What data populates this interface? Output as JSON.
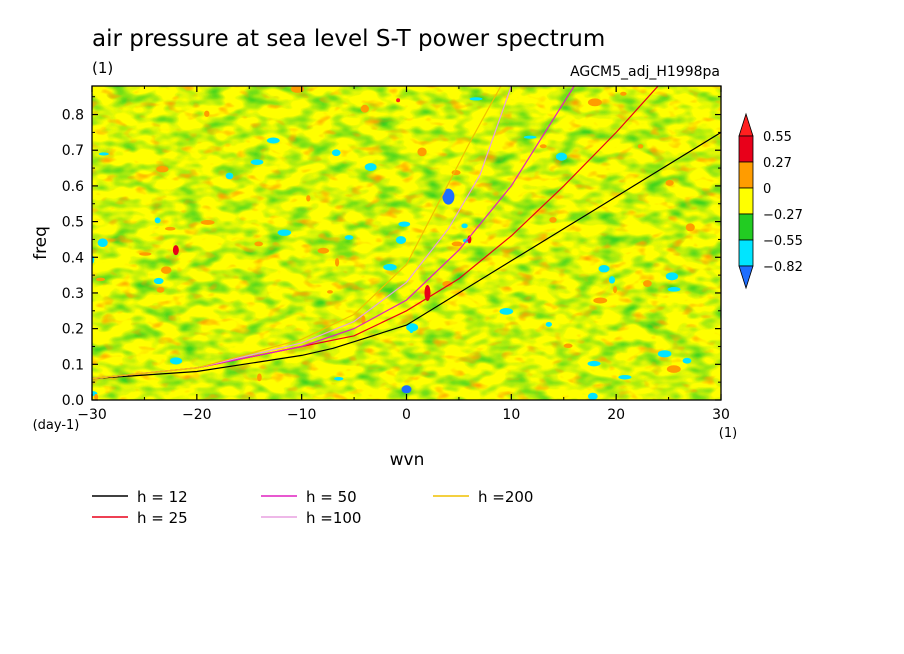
{
  "chart_data": {
    "type": "heatmap",
    "title": "air pressure at sea level S-T power spectrum",
    "units_label": "(1)",
    "dataset_label": "AGCM5_adj_H1998pa",
    "xlabel": "wvn",
    "ylabel": "freq",
    "x_unit_label": "(1)",
    "y_unit_label": "(day-1)",
    "xlim": [
      -30,
      30
    ],
    "ylim": [
      0,
      0.88
    ],
    "x_ticks": [
      -30,
      -20,
      -10,
      0,
      10,
      20,
      30
    ],
    "x_tick_labels": [
      "−30",
      "−20",
      "−10",
      "0",
      "10",
      "20",
      "30"
    ],
    "y_ticks": [
      0,
      0.1,
      0.2,
      0.3,
      0.4,
      0.5,
      0.6,
      0.7,
      0.8
    ],
    "y_tick_labels": [
      "0.0",
      "0.1",
      "0.2",
      "0.3",
      "0.4",
      "0.5",
      "0.6",
      "0.7",
      "0.8"
    ],
    "colorbar": {
      "levels": [
        -0.82,
        -0.55,
        -0.27,
        0,
        0.27,
        0.55
      ],
      "level_labels": [
        "−0.82",
        "−0.55",
        "−0.27",
        "0",
        "0.27",
        "0.55"
      ],
      "colors": [
        "#1e6eff",
        "#00e5ff",
        "#22cc22",
        "#ffff00",
        "#ff9c00",
        "#e8001a",
        "#ff1f1f"
      ]
    },
    "series": [
      {
        "name": "h = 12",
        "color": "#000000",
        "x": [
          -30,
          -20,
          -10,
          -7,
          0,
          10,
          20,
          30
        ],
        "y": [
          0.06,
          0.08,
          0.125,
          0.145,
          0.21,
          0.39,
          0.57,
          0.75
        ]
      },
      {
        "name": "h = 25",
        "color": "#e8001a",
        "x": [
          -30,
          -20,
          -10,
          -5,
          0,
          5,
          10,
          15,
          20,
          24
        ],
        "y": [
          0.06,
          0.09,
          0.15,
          0.18,
          0.25,
          0.34,
          0.46,
          0.6,
          0.75,
          0.88
        ]
      },
      {
        "name": "h = 50",
        "color": "#e020c0",
        "x": [
          -30,
          -20,
          -10,
          -5,
          0,
          5,
          10,
          16
        ],
        "y": [
          0.06,
          0.09,
          0.15,
          0.2,
          0.28,
          0.42,
          0.6,
          0.88
        ]
      },
      {
        "name": "h =100",
        "color": "#e8a0e0",
        "x": [
          -30,
          -20,
          -10,
          -5,
          0,
          4,
          7,
          10
        ],
        "y": [
          0.06,
          0.09,
          0.16,
          0.22,
          0.33,
          0.48,
          0.63,
          0.88
        ]
      },
      {
        "name": "h =200",
        "color": "#f0c000",
        "x": [
          -30,
          -20,
          -10,
          -5,
          0,
          3,
          6,
          9
        ],
        "y": [
          0.06,
          0.09,
          0.17,
          0.24,
          0.38,
          0.55,
          0.72,
          0.88
        ]
      }
    ],
    "grid": false
  }
}
